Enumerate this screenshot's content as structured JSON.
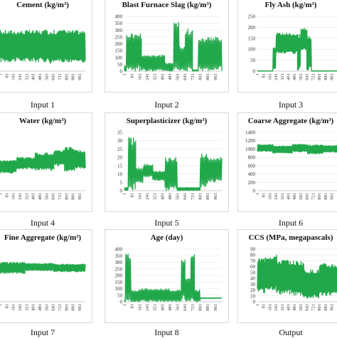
{
  "chart_data": [
    {
      "type": "line",
      "title": "Cement (kg/m³)",
      "caption": "Input 1",
      "color": "#21a84a",
      "x_ticks": [
        "1",
        "81",
        "161",
        "241",
        "321",
        "401",
        "481",
        "561",
        "641",
        "721",
        "801",
        "881",
        "961"
      ],
      "x_range": [
        1,
        1030
      ],
      "y_ticks": [],
      "ylim": [
        0,
        600
      ],
      "segments": [
        {
          "x": [
            1,
            1030
          ],
          "lo": 100,
          "hi": 450
        },
        {
          "x": [
            60,
            120
          ],
          "lo": 160,
          "hi": 420
        },
        {
          "x": [
            120,
            300
          ],
          "lo": 250,
          "hi": 380
        },
        {
          "x": [
            300,
            520
          ],
          "lo": 200,
          "hi": 360
        },
        {
          "x": [
            520,
            600
          ],
          "lo": 140,
          "hi": 330
        },
        {
          "x": [
            600,
            640
          ],
          "lo": 80,
          "hi": 420
        },
        {
          "x": [
            640,
            720
          ],
          "lo": 120,
          "hi": 300
        },
        {
          "x": [
            720,
            790
          ],
          "lo": 260,
          "hi": 460
        },
        {
          "x": [
            790,
            1030
          ],
          "lo": 100,
          "hi": 350
        }
      ]
    },
    {
      "type": "line",
      "title": "Blast Furnace Slag (kg/m³)",
      "caption": "Input 2",
      "color": "#21a84a",
      "x_ticks": [
        "1",
        "81",
        "161",
        "241",
        "321",
        "401",
        "481",
        "561",
        "641",
        "721",
        "801",
        "881",
        "961"
      ],
      "x_range": [
        1,
        1030
      ],
      "y_ticks": [
        "0",
        "50",
        "100",
        "150",
        "200",
        "250",
        "300",
        "350",
        "400"
      ],
      "ylim": [
        0,
        400
      ],
      "segments": [
        {
          "x": [
            1,
            20
          ],
          "lo": 0,
          "hi": 40
        },
        {
          "x": [
            20,
            180
          ],
          "lo": 0,
          "hi": 280
        },
        {
          "x": [
            180,
            430
          ],
          "lo": 0,
          "hi": 120
        },
        {
          "x": [
            430,
            520
          ],
          "lo": 0,
          "hi": 60
        },
        {
          "x": [
            520,
            580
          ],
          "lo": 0,
          "hi": 360
        },
        {
          "x": [
            580,
            640
          ],
          "lo": 0,
          "hi": 180
        },
        {
          "x": [
            640,
            720
          ],
          "lo": 0,
          "hi": 310
        },
        {
          "x": [
            720,
            780
          ],
          "lo": 0,
          "hi": 10
        },
        {
          "x": [
            780,
            1030
          ],
          "lo": 0,
          "hi": 250
        }
      ]
    },
    {
      "type": "line",
      "title": "Fly Ash (kg/m³)",
      "caption": "Input 3",
      "color": "#21a84a",
      "x_ticks": [
        "1",
        "81",
        "161",
        "241",
        "321",
        "401",
        "481",
        "561",
        "641",
        "721",
        "801",
        "881",
        "961"
      ],
      "x_range": [
        1,
        1030
      ],
      "y_ticks": [
        "0",
        "50",
        "100",
        "150",
        "200",
        "250"
      ],
      "ylim": [
        0,
        250
      ],
      "segments": [
        {
          "x": [
            1,
            200
          ],
          "lo": 0,
          "hi": 2
        },
        {
          "x": [
            200,
            240
          ],
          "lo": 0,
          "hi": 110
        },
        {
          "x": [
            240,
            520
          ],
          "lo": 80,
          "hi": 175
        },
        {
          "x": [
            520,
            560
          ],
          "lo": 0,
          "hi": 170
        },
        {
          "x": [
            560,
            640
          ],
          "lo": 90,
          "hi": 200
        },
        {
          "x": [
            640,
            700
          ],
          "lo": 0,
          "hi": 170
        },
        {
          "x": [
            700,
            1030
          ],
          "lo": 0,
          "hi": 2
        }
      ]
    },
    {
      "type": "line",
      "title": "Water (kg/m³)",
      "caption": "Input 4",
      "color": "#21a84a",
      "x_ticks": [
        "1",
        "81",
        "161",
        "241",
        "321",
        "401",
        "481",
        "561",
        "641",
        "721",
        "801",
        "881",
        "961"
      ],
      "x_range": [
        1,
        1030
      ],
      "y_ticks": [],
      "ylim": [
        100,
        300
      ],
      "segments": [
        {
          "x": [
            1,
            200
          ],
          "lo": 160,
          "hi": 205
        },
        {
          "x": [
            200,
            420
          ],
          "lo": 175,
          "hi": 215
        },
        {
          "x": [
            420,
            650
          ],
          "lo": 170,
          "hi": 230
        },
        {
          "x": [
            650,
            780
          ],
          "lo": 185,
          "hi": 240
        },
        {
          "x": [
            780,
            900
          ],
          "lo": 165,
          "hi": 250
        },
        {
          "x": [
            900,
            1030
          ],
          "lo": 175,
          "hi": 240
        }
      ]
    },
    {
      "type": "line",
      "title": "Superplasticizer (kg/m³)",
      "caption": "Input 5",
      "color": "#21a84a",
      "x_ticks": [
        "1",
        "81",
        "161",
        "241",
        "321",
        "401",
        "481",
        "561",
        "641",
        "721",
        "801",
        "881",
        "961"
      ],
      "x_range": [
        1,
        1030
      ],
      "y_ticks": [
        "0",
        "5",
        "10",
        "15",
        "20",
        "25",
        "30",
        "35"
      ],
      "ylim": [
        0,
        35
      ],
      "segments": [
        {
          "x": [
            1,
            40
          ],
          "lo": 0,
          "hi": 2
        },
        {
          "x": [
            40,
            120
          ],
          "lo": 0,
          "hi": 32
        },
        {
          "x": [
            120,
            200
          ],
          "lo": 5,
          "hi": 14
        },
        {
          "x": [
            200,
            300
          ],
          "lo": 8,
          "hi": 16
        },
        {
          "x": [
            300,
            430
          ],
          "lo": 6,
          "hi": 12
        },
        {
          "x": [
            430,
            560
          ],
          "lo": 0,
          "hi": 20
        },
        {
          "x": [
            560,
            800
          ],
          "lo": 0,
          "hi": 2
        },
        {
          "x": [
            800,
            880
          ],
          "lo": 2,
          "hi": 22
        },
        {
          "x": [
            880,
            1030
          ],
          "lo": 5,
          "hi": 20
        }
      ]
    },
    {
      "type": "line",
      "title": "Coarse Aggregate (kg/m³)",
      "caption": "Input 6",
      "color": "#21a84a",
      "x_ticks": [
        "1",
        "81",
        "161",
        "241",
        "321",
        "401",
        "481",
        "561",
        "641",
        "721",
        "801",
        "881",
        "961"
      ],
      "x_range": [
        1,
        1030
      ],
      "y_ticks": [
        "0",
        "200",
        "400",
        "600",
        "800",
        "1000",
        "1200",
        "1400"
      ],
      "ylim": [
        0,
        1400
      ],
      "segments": [
        {
          "x": [
            1,
            200
          ],
          "lo": 940,
          "hi": 1110
        },
        {
          "x": [
            200,
            450
          ],
          "lo": 900,
          "hi": 1080
        },
        {
          "x": [
            450,
            650
          ],
          "lo": 930,
          "hi": 1120
        },
        {
          "x": [
            650,
            850
          ],
          "lo": 880,
          "hi": 1100
        },
        {
          "x": [
            850,
            1030
          ],
          "lo": 920,
          "hi": 1090
        }
      ]
    },
    {
      "type": "line",
      "title": "Fine Aggregate (kg/m³)",
      "caption": "Input 7",
      "color": "#21a84a",
      "x_ticks": [
        "1",
        "81",
        "161",
        "241",
        "321",
        "401",
        "481",
        "561",
        "641",
        "721",
        "801",
        "881",
        "961"
      ],
      "x_range": [
        1,
        1030
      ],
      "y_ticks": [],
      "ylim": [
        0,
        1200
      ],
      "segments": [
        {
          "x": [
            1,
            300
          ],
          "lo": 640,
          "hi": 900
        },
        {
          "x": [
            300,
            650
          ],
          "lo": 700,
          "hi": 880
        },
        {
          "x": [
            650,
            1030
          ],
          "lo": 680,
          "hi": 860
        }
      ]
    },
    {
      "type": "line",
      "title": "Age (day)",
      "caption": "Input 8",
      "color": "#21a84a",
      "x_ticks": [
        "1",
        "81",
        "161",
        "241",
        "321",
        "401",
        "481",
        "561",
        "641",
        "721",
        "801",
        "881",
        "961"
      ],
      "x_range": [
        1,
        1030
      ],
      "y_ticks": [
        "0",
        "50",
        "100",
        "150",
        "200",
        "250",
        "300",
        "350",
        "400"
      ],
      "ylim": [
        0,
        400
      ],
      "segments": [
        {
          "x": [
            1,
            10
          ],
          "lo": 0,
          "hi": 10
        },
        {
          "x": [
            10,
            70
          ],
          "lo": 0,
          "hi": 365
        },
        {
          "x": [
            70,
            150
          ],
          "lo": 0,
          "hi": 90
        },
        {
          "x": [
            150,
            480
          ],
          "lo": 0,
          "hi": 100
        },
        {
          "x": [
            480,
            600
          ],
          "lo": 0,
          "hi": 90
        },
        {
          "x": [
            600,
            640
          ],
          "lo": 0,
          "hi": 350
        },
        {
          "x": [
            640,
            700
          ],
          "lo": 0,
          "hi": 180
        },
        {
          "x": [
            700,
            740
          ],
          "lo": 0,
          "hi": 365
        },
        {
          "x": [
            740,
            800
          ],
          "lo": 0,
          "hi": 90
        },
        {
          "x": [
            800,
            1030
          ],
          "lo": 25,
          "hi": 30
        }
      ]
    },
    {
      "type": "line",
      "title": "CCS (MPa, megapascals)",
      "caption": "Output",
      "color": "#21a84a",
      "x_ticks": [
        "1",
        "81",
        "161",
        "241",
        "321",
        "401",
        "481",
        "561",
        "641",
        "721",
        "801",
        "881",
        "961"
      ],
      "x_range": [
        1,
        1030
      ],
      "y_ticks": [
        "0",
        "10",
        "20",
        "30",
        "40",
        "50",
        "60",
        "70",
        "80",
        "90"
      ],
      "ylim": [
        0,
        90
      ],
      "segments": [
        {
          "x": [
            1,
            100
          ],
          "lo": 15,
          "hi": 75
        },
        {
          "x": [
            100,
            250
          ],
          "lo": 20,
          "hi": 80
        },
        {
          "x": [
            250,
            450
          ],
          "lo": 12,
          "hi": 72
        },
        {
          "x": [
            450,
            600
          ],
          "lo": 10,
          "hi": 70
        },
        {
          "x": [
            600,
            800
          ],
          "lo": 5,
          "hi": 55
        },
        {
          "x": [
            800,
            1030
          ],
          "lo": 10,
          "hi": 65
        }
      ]
    }
  ]
}
